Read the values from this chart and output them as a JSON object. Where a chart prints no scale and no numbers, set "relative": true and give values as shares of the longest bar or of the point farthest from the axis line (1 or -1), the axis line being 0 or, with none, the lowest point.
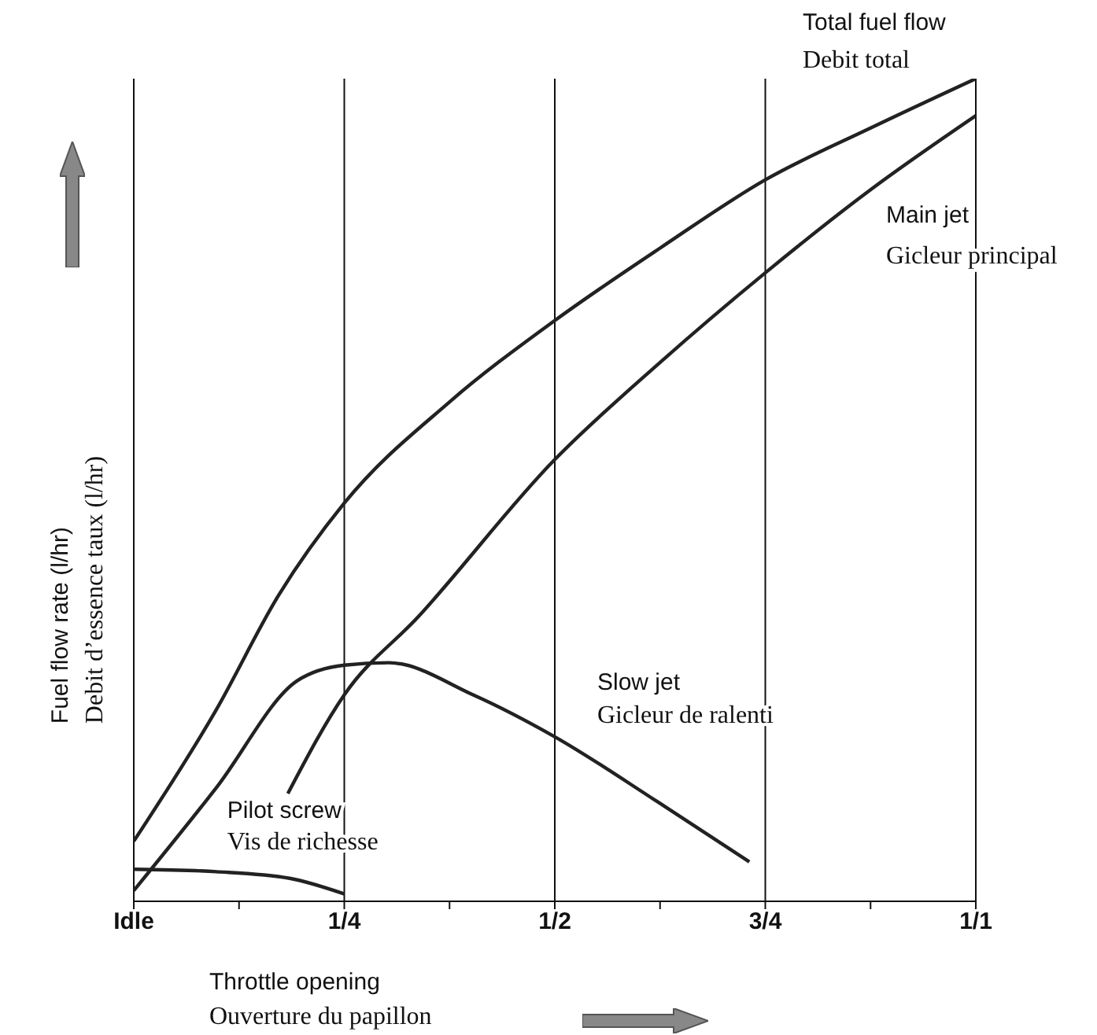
{
  "chart_data": {
    "type": "line",
    "relative": true,
    "xlabel": "Throttle opening\nOuverture du papillon",
    "ylabel": "Fuel flow rate (l/hr)\nDebit d’essence taux (l/hr)",
    "xlim": [
      0,
      1
    ],
    "xticks": [
      {
        "value": 0,
        "label": "Idle"
      },
      {
        "value": 0.125,
        "label": null
      },
      {
        "value": 0.25,
        "label": "1/4"
      },
      {
        "value": 0.375,
        "label": null
      },
      {
        "value": 0.5,
        "label": "1/2"
      },
      {
        "value": 0.625,
        "label": null
      },
      {
        "value": 0.75,
        "label": "3/4"
      },
      {
        "value": 0.875,
        "label": null
      },
      {
        "value": 1,
        "label": "1/1"
      }
    ],
    "grid": "x",
    "marker": "none",
    "line_style": "solid",
    "series": [
      {
        "name": "Total fuel flow\nDebit total",
        "color": "#222222",
        "x": [
          0,
          0.098,
          0.172,
          0.25,
          0.375,
          0.5,
          0.625,
          0.75,
          0.875,
          1
        ],
        "values": [
          0.073,
          0.233,
          0.372,
          0.484,
          0.607,
          0.706,
          0.794,
          0.877,
          0.94,
          1
        ]
      },
      {
        "name": "Main jet\nGicleur principal",
        "color": "#222222",
        "x": [
          0.183,
          0.25,
          0.338,
          0.5,
          0.625,
          0.75,
          0.875,
          1
        ],
        "values": [
          0.131,
          0.251,
          0.346,
          0.537,
          0.655,
          0.764,
          0.865,
          0.955
        ]
      },
      {
        "name": "Slow jet\nGicleur de ralenti",
        "color": "#222222",
        "x": [
          0,
          0.098,
          0.194,
          0.25,
          0.303,
          0.403,
          0.5,
          0.622,
          0.731
        ],
        "values": [
          0.013,
          0.138,
          0.268,
          0.287,
          0.29,
          0.251,
          0.2,
          0.121,
          0.048
        ]
      },
      {
        "name": "Pilot screw\nVis de richesse",
        "color": "#222222",
        "x": [
          0,
          0.098,
          0.185,
          0.25
        ],
        "values": [
          0.039,
          0.036,
          0.028,
          0.009
        ]
      }
    ]
  }
}
